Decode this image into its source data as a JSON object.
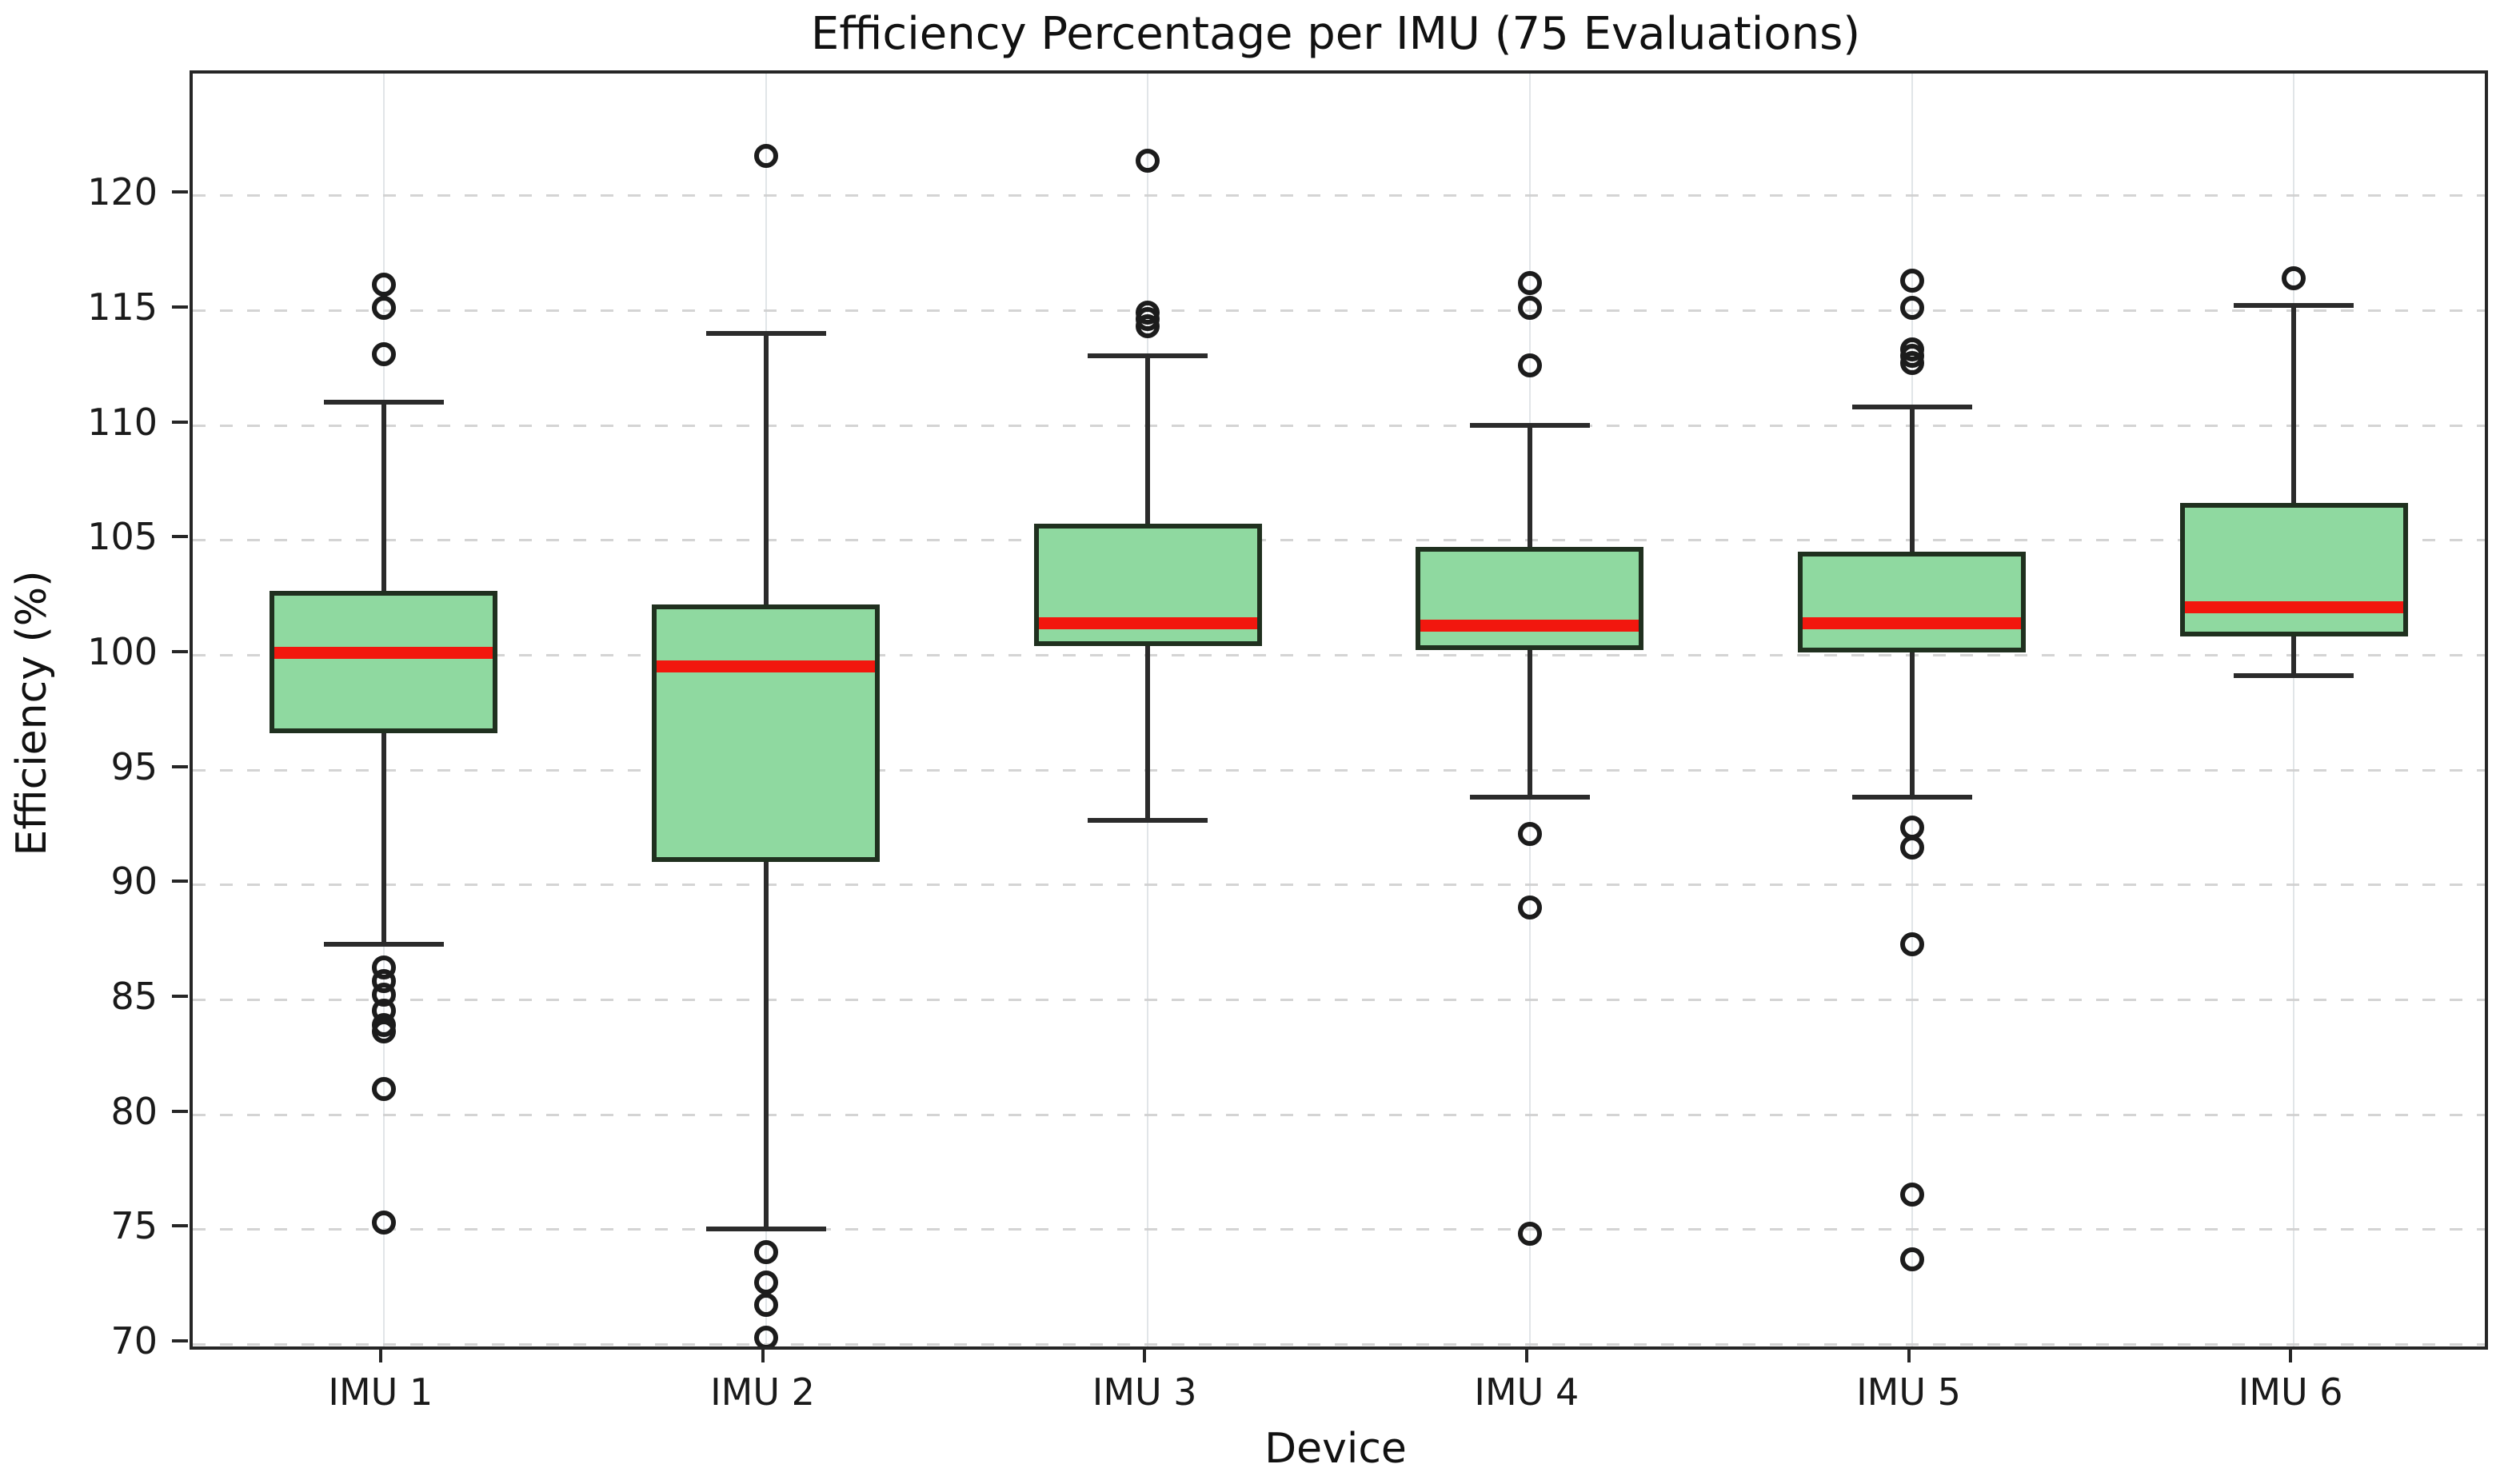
{
  "figure": {
    "title": "Efficiency Percentage per IMU (75 Evaluations)",
    "xlabel": "Device",
    "ylabel": "Efficiency (%)"
  },
  "colors": {
    "background": "#ffffff",
    "box_fill": "#8fd9a0",
    "box_edge": "#20301f",
    "median_line": "#f2170e",
    "whisker": "#2b2b2b",
    "outlier_stroke": "#1c1c1c",
    "grid_horizontal": "#cfcfcf",
    "grid_vertical": "#e1e5e8",
    "spine": "#262626",
    "text": "#1a1a1a"
  },
  "chart_data": {
    "type": "box",
    "title": "Efficiency Percentage per IMU (75 Evaluations)",
    "xlabel": "Device",
    "ylabel": "Efficiency (%)",
    "ylim": [
      69.9,
      125.3
    ],
    "yticks": [
      70,
      75,
      80,
      85,
      90,
      95,
      100,
      105,
      110,
      115,
      120
    ],
    "grid": "horizontal dashed gridlines at y ticks, faint solid vertical gridlines at category centers",
    "legend": "none",
    "categories": [
      "IMU 1",
      "IMU 2",
      "IMU 3",
      "IMU 4",
      "IMU 5",
      "IMU 6"
    ],
    "series": [
      {
        "label": "IMU 1",
        "median": 100.1,
        "q1": 96.6,
        "q3": 102.8,
        "whisker_low": 87.4,
        "whisker_high": 111.0,
        "outliers_high": [
          113.1,
          115.1,
          116.1
        ],
        "outliers_low": [
          86.4,
          85.8,
          85.2,
          84.5,
          83.9,
          83.6,
          81.1,
          75.3
        ]
      },
      {
        "label": "IMU 2",
        "median": 99.5,
        "q1": 91.0,
        "q3": 102.2,
        "whisker_low": 75.0,
        "whisker_high": 114.0,
        "outliers_high": [
          121.7
        ],
        "outliers_low": [
          74.0,
          72.7,
          71.7,
          70.3
        ]
      },
      {
        "label": "IMU 3",
        "median": 101.4,
        "q1": 100.4,
        "q3": 105.7,
        "whisker_low": 92.8,
        "whisker_high": 113.0,
        "outliers_high": [
          114.3,
          114.6,
          114.9,
          121.5
        ],
        "outliers_low": []
      },
      {
        "label": "IMU 4",
        "median": 101.3,
        "q1": 100.2,
        "q3": 104.7,
        "whisker_low": 93.8,
        "whisker_high": 110.0,
        "outliers_high": [
          112.6,
          115.1,
          116.2
        ],
        "outliers_low": [
          92.2,
          89.0,
          74.8
        ]
      },
      {
        "label": "IMU 5",
        "median": 101.4,
        "q1": 100.1,
        "q3": 104.5,
        "whisker_low": 93.8,
        "whisker_high": 110.8,
        "outliers_high": [
          112.7,
          113.0,
          113.3,
          115.1,
          116.3
        ],
        "outliers_low": [
          92.5,
          91.6,
          87.4,
          76.5,
          73.7
        ]
      },
      {
        "label": "IMU 6",
        "median": 102.1,
        "q1": 100.8,
        "q3": 106.6,
        "whisker_low": 99.1,
        "whisker_high": 115.2,
        "outliers_high": [
          116.4
        ],
        "outliers_low": []
      }
    ]
  }
}
